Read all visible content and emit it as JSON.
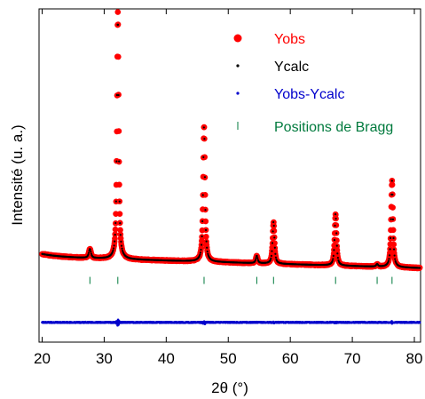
{
  "chart_data": {
    "type": "scatter",
    "title": "",
    "xlabel": "2θ (°)",
    "ylabel": "Intensité (u. a.)",
    "xlim": [
      19.5,
      81
    ],
    "ylim": [
      -0.32,
      1.03
    ],
    "x_ticks": [
      20,
      30,
      40,
      50,
      60,
      70,
      80
    ],
    "y_ticks_shown": false,
    "grid": false,
    "legend_position": "top-right",
    "legend": [
      {
        "label": "Yobs",
        "color": "#ff0000",
        "marker": "large-dot"
      },
      {
        "label": "Ycalc",
        "color": "#000000",
        "marker": "small-dot"
      },
      {
        "label": "Yobs-Ycalc",
        "color": "#0000cc",
        "marker": "small-dot"
      },
      {
        "label": "Positions de Bragg",
        "color": "#007a3d",
        "marker": "tick"
      }
    ],
    "colors": {
      "yobs": "#ff0000",
      "ycalc": "#000000",
      "difference": "#0000cc",
      "bragg": "#007a3d"
    },
    "background": {
      "start": [
        20,
        0.025
      ],
      "end": [
        81,
        -0.02
      ]
    },
    "peaks": [
      {
        "two_theta": 27.7,
        "intensity": 0.036,
        "width": 0.35
      },
      {
        "two_theta": 32.2,
        "intensity": 1.0,
        "width": 0.28
      },
      {
        "two_theta": 46.1,
        "intensity": 0.55,
        "width": 0.3
      },
      {
        "two_theta": 54.6,
        "intensity": 0.03,
        "width": 0.3
      },
      {
        "two_theta": 57.3,
        "intensity": 0.17,
        "width": 0.3
      },
      {
        "two_theta": 67.3,
        "intensity": 0.21,
        "width": 0.3
      },
      {
        "two_theta": 74.0,
        "intensity": 0.01,
        "width": 0.3
      },
      {
        "two_theta": 76.4,
        "intensity": 0.35,
        "width": 0.3
      }
    ],
    "bragg_positions": [
      27.7,
      32.2,
      46.1,
      54.6,
      57.3,
      67.3,
      74.0,
      76.4
    ],
    "bragg_level": -0.07,
    "difference_level": -0.24
  }
}
